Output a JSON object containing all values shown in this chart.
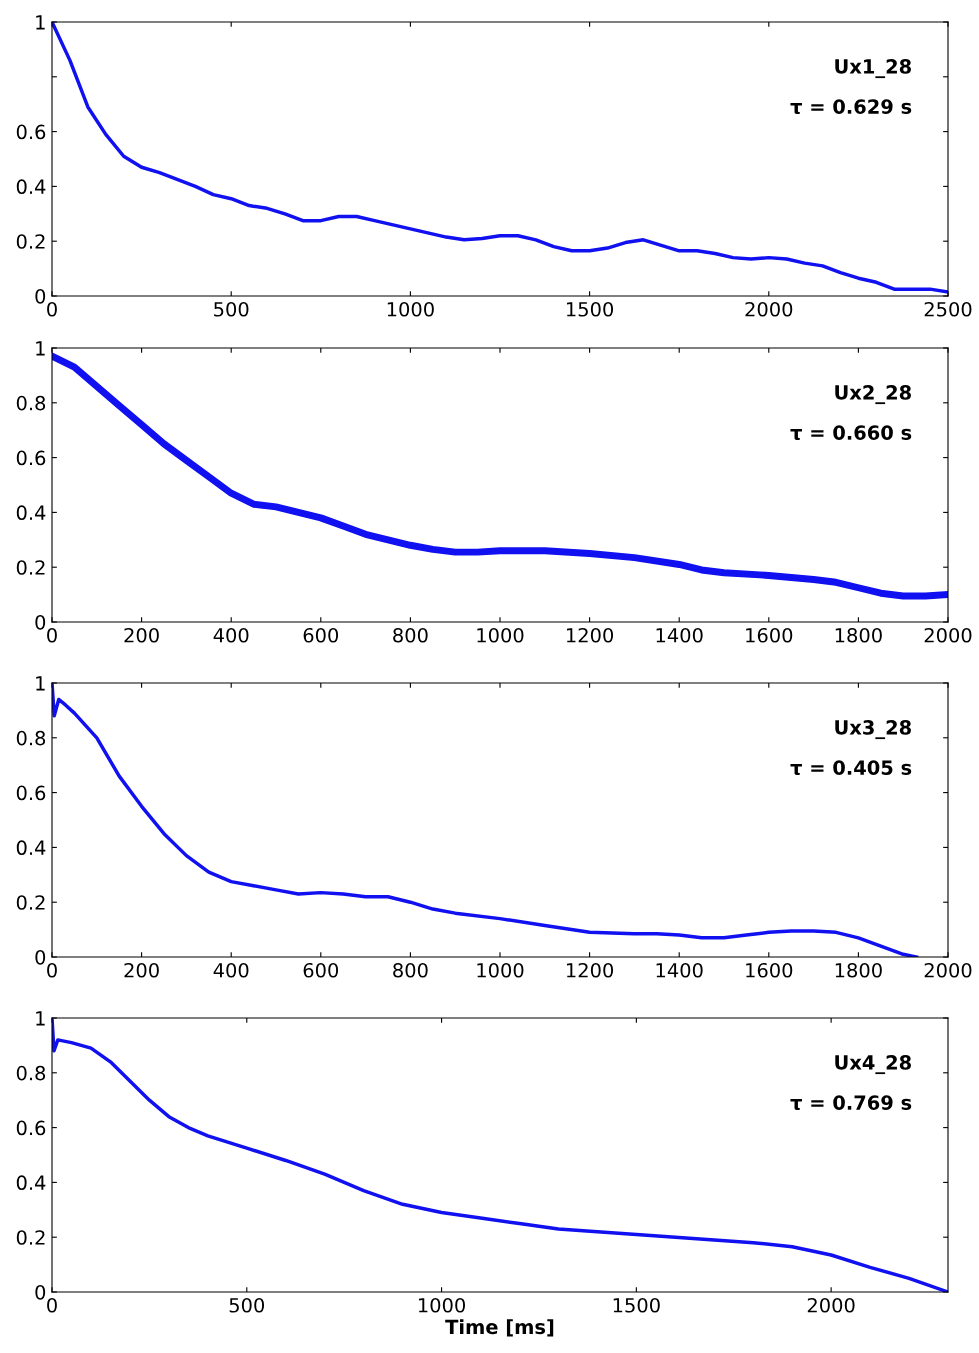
{
  "chart_data": [
    {
      "type": "line",
      "xlim": [
        0,
        2500
      ],
      "xticks": [
        0,
        500,
        1000,
        1500,
        2000,
        2500
      ],
      "ylim": [
        0,
        1
      ],
      "yticks": [
        0,
        0.2,
        0.4,
        0.6,
        {
          "value": 0.8,
          "label": null
        },
        1
      ],
      "grid": false,
      "annotations": [
        "Ux1_28",
        "τ = 0.629 s"
      ],
      "series": [
        {
          "color": "#1010f0",
          "x": [
            0,
            50,
            100,
            150,
            200,
            250,
            300,
            400,
            450,
            500,
            550,
            600,
            650,
            700,
            750,
            800,
            850,
            900,
            1000,
            1100,
            1150,
            1200,
            1250,
            1300,
            1350,
            1400,
            1450,
            1500,
            1550,
            1600,
            1650,
            1700,
            1750,
            1800,
            1850,
            1900,
            1950,
            2000,
            2050,
            2100,
            2150,
            2200,
            2250,
            2300,
            2350,
            2400,
            2450,
            2500
          ],
          "values": [
            1.0,
            0.86,
            0.69,
            0.59,
            0.51,
            0.47,
            0.45,
            0.4,
            0.37,
            0.355,
            0.33,
            0.32,
            0.3,
            0.275,
            0.275,
            0.29,
            0.29,
            0.275,
            0.245,
            0.215,
            0.205,
            0.21,
            0.22,
            0.22,
            0.205,
            0.18,
            0.165,
            0.165,
            0.175,
            0.195,
            0.205,
            0.185,
            0.165,
            0.165,
            0.155,
            0.14,
            0.135,
            0.14,
            0.135,
            0.12,
            0.11,
            0.085,
            0.065,
            0.05,
            0.025,
            0.025,
            0.025,
            0.015
          ]
        }
      ]
    },
    {
      "type": "line",
      "xlim": [
        0,
        2000
      ],
      "xticks": [
        0,
        200,
        400,
        600,
        800,
        1000,
        1200,
        1400,
        1600,
        1800,
        2000
      ],
      "ylim": [
        0,
        1
      ],
      "yticks": [
        0,
        0.2,
        0.4,
        0.6,
        0.8,
        1
      ],
      "grid": false,
      "annotations": [
        "Ux2_28",
        "τ = 0.660 s"
      ],
      "series": [
        {
          "color": "#1010f0",
          "x": [
            0,
            50,
            100,
            150,
            200,
            250,
            300,
            350,
            400,
            450,
            500,
            550,
            600,
            650,
            700,
            750,
            800,
            850,
            900,
            950,
            1000,
            1100,
            1200,
            1300,
            1400,
            1450,
            1500,
            1600,
            1700,
            1750,
            1800,
            1850,
            1900,
            1950,
            2000
          ],
          "values": [
            0.97,
            0.93,
            0.86,
            0.79,
            0.72,
            0.65,
            0.59,
            0.53,
            0.47,
            0.43,
            0.42,
            0.4,
            0.38,
            0.35,
            0.32,
            0.3,
            0.28,
            0.265,
            0.255,
            0.255,
            0.26,
            0.26,
            0.25,
            0.235,
            0.21,
            0.19,
            0.18,
            0.17,
            0.155,
            0.145,
            0.125,
            0.105,
            0.095,
            0.095,
            0.1
          ]
        }
      ]
    },
    {
      "type": "line",
      "xlim": [
        0,
        2000
      ],
      "xticks": [
        0,
        200,
        400,
        600,
        800,
        1000,
        1200,
        1400,
        1600,
        1800,
        2000
      ],
      "ylim": [
        0,
        1
      ],
      "yticks": [
        0,
        0.2,
        0.4,
        0.6,
        0.8,
        1
      ],
      "grid": false,
      "annotations": [
        "Ux3_28",
        "τ = 0.405 s"
      ],
      "series": [
        {
          "color": "#1010f0",
          "x": [
            0,
            5,
            15,
            30,
            50,
            100,
            150,
            200,
            250,
            300,
            350,
            400,
            450,
            500,
            550,
            600,
            650,
            700,
            750,
            800,
            850,
            900,
            1000,
            1100,
            1200,
            1300,
            1350,
            1400,
            1450,
            1500,
            1550,
            1600,
            1650,
            1700,
            1750,
            1800,
            1850,
            1900,
            1930
          ],
          "values": [
            1.0,
            0.88,
            0.94,
            0.92,
            0.89,
            0.8,
            0.66,
            0.55,
            0.45,
            0.37,
            0.31,
            0.275,
            0.26,
            0.245,
            0.23,
            0.235,
            0.23,
            0.22,
            0.22,
            0.2,
            0.175,
            0.16,
            0.14,
            0.115,
            0.09,
            0.085,
            0.085,
            0.08,
            0.07,
            0.07,
            0.08,
            0.09,
            0.095,
            0.095,
            0.09,
            0.07,
            0.04,
            0.01,
            0.0
          ]
        }
      ]
    },
    {
      "type": "line",
      "xlim": [
        0,
        2300
      ],
      "xticks": [
        0,
        500,
        1000,
        1500,
        2000
      ],
      "ylim": [
        0,
        1
      ],
      "yticks": [
        0,
        0.2,
        0.4,
        0.6,
        0.8,
        1
      ],
      "grid": false,
      "xlabel": "Time [ms]",
      "annotations": [
        "Ux4_28",
        "τ = 0.769 s"
      ],
      "series": [
        {
          "color": "#1010f0",
          "x": [
            0,
            5,
            15,
            50,
            100,
            150,
            200,
            250,
            300,
            350,
            400,
            500,
            600,
            700,
            800,
            900,
            1000,
            1100,
            1200,
            1300,
            1400,
            1500,
            1600,
            1700,
            1800,
            1900,
            2000,
            2100,
            2200,
            2300
          ],
          "values": [
            1.0,
            0.88,
            0.92,
            0.91,
            0.89,
            0.84,
            0.77,
            0.7,
            0.64,
            0.6,
            0.57,
            0.525,
            0.48,
            0.43,
            0.37,
            0.32,
            0.29,
            0.27,
            0.25,
            0.23,
            0.22,
            0.21,
            0.2,
            0.19,
            0.18,
            0.165,
            0.135,
            0.09,
            0.05,
            0.0
          ]
        }
      ]
    }
  ]
}
